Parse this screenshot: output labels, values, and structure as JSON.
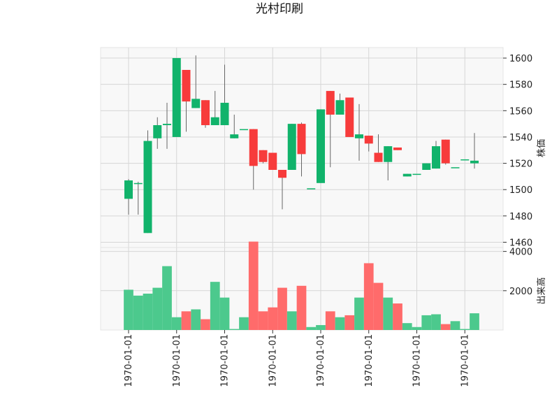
{
  "chart_data": {
    "type": "candlestick",
    "title": "光村印刷",
    "price_panel": {
      "ylabel": "株価",
      "ylim": [
        1456,
        1608
      ],
      "yticks": [
        1460,
        1480,
        1500,
        1520,
        1540,
        1560,
        1580,
        1600
      ]
    },
    "volume_panel": {
      "ylabel": "出来高",
      "ylim": [
        0,
        4200
      ],
      "yticks": [
        2000,
        4000
      ]
    },
    "x_tick_label": "1970-01-01",
    "x_tick_indices": [
      0,
      5,
      10,
      15,
      20,
      25,
      30,
      35
    ],
    "colors": {
      "up": "#11b36b",
      "down": "#f73b3b",
      "up_volume": "#4cc98d",
      "down_volume": "#ff6b6b",
      "wick": "#666666"
    },
    "candles": [
      {
        "open": 1493,
        "high": 1508,
        "low": 1481,
        "close": 1507,
        "volume": 2050
      },
      {
        "open": 1505,
        "high": 1506,
        "low": 1481,
        "close": 1505,
        "volume": 1750
      },
      {
        "open": 1467,
        "high": 1545,
        "low": 1467,
        "close": 1537,
        "volume": 1850
      },
      {
        "open": 1539,
        "high": 1555,
        "low": 1531,
        "close": 1549,
        "volume": 2150
      },
      {
        "open": 1549,
        "high": 1566,
        "low": 1531,
        "close": 1550,
        "volume": 3250
      },
      {
        "open": 1540,
        "high": 1600,
        "low": 1540,
        "close": 1600,
        "volume": 650
      },
      {
        "open": 1591,
        "high": 1591,
        "low": 1544,
        "close": 1567,
        "volume": 950
      },
      {
        "open": 1562,
        "high": 1602,
        "low": 1562,
        "close": 1569,
        "volume": 1050
      },
      {
        "open": 1568,
        "high": 1568,
        "low": 1547,
        "close": 1549,
        "volume": 550
      },
      {
        "open": 1549,
        "high": 1575,
        "low": 1549,
        "close": 1555,
        "volume": 2450
      },
      {
        "open": 1549,
        "high": 1595,
        "low": 1549,
        "close": 1566,
        "volume": 1650
      },
      {
        "open": 1539,
        "high": 1557,
        "low": 1539,
        "close": 1542,
        "volume": 50
      },
      {
        "open": 1546,
        "high": 1546,
        "low": 1546,
        "close": 1546,
        "volume": 650
      },
      {
        "open": 1546,
        "high": 1546,
        "low": 1500,
        "close": 1518,
        "volume": 4500
      },
      {
        "open": 1530,
        "high": 1530,
        "low": 1520,
        "close": 1521,
        "volume": 950
      },
      {
        "open": 1528,
        "high": 1528,
        "low": 1515,
        "close": 1515,
        "volume": 1150
      },
      {
        "open": 1515,
        "high": 1515,
        "low": 1485,
        "close": 1509,
        "volume": 2150
      },
      {
        "open": 1515,
        "high": 1550,
        "low": 1515,
        "close": 1550,
        "volume": 950
      },
      {
        "open": 1550,
        "high": 1551,
        "low": 1510,
        "close": 1527,
        "volume": 2250
      },
      {
        "open": 1501,
        "high": 1501,
        "low": 1501,
        "close": 1501,
        "volume": 150
      },
      {
        "open": 1505,
        "high": 1561,
        "low": 1505,
        "close": 1561,
        "volume": 250
      },
      {
        "open": 1575,
        "high": 1575,
        "low": 1517,
        "close": 1557,
        "volume": 950
      },
      {
        "open": 1557,
        "high": 1573,
        "low": 1557,
        "close": 1568,
        "volume": 650
      },
      {
        "open": 1570,
        "high": 1570,
        "low": 1540,
        "close": 1540,
        "volume": 750
      },
      {
        "open": 1539,
        "high": 1565,
        "low": 1522,
        "close": 1542,
        "volume": 1650
      },
      {
        "open": 1541,
        "high": 1541,
        "low": 1529,
        "close": 1535,
        "volume": 3400
      },
      {
        "open": 1528,
        "high": 1542,
        "low": 1521,
        "close": 1521,
        "volume": 2400
      },
      {
        "open": 1521,
        "high": 1533,
        "low": 1507,
        "close": 1533,
        "volume": 1650
      },
      {
        "open": 1532,
        "high": 1532,
        "low": 1530,
        "close": 1530,
        "volume": 1350
      },
      {
        "open": 1510,
        "high": 1512,
        "low": 1510,
        "close": 1512,
        "volume": 350
      },
      {
        "open": 1512,
        "high": 1512,
        "low": 1512,
        "close": 1512,
        "volume": 150
      },
      {
        "open": 1515,
        "high": 1520,
        "low": 1515,
        "close": 1520,
        "volume": 750
      },
      {
        "open": 1516,
        "high": 1537,
        "low": 1516,
        "close": 1533,
        "volume": 800
      },
      {
        "open": 1538,
        "high": 1538,
        "low": 1519,
        "close": 1520,
        "volume": 300
      },
      {
        "open": 1517,
        "high": 1517,
        "low": 1517,
        "close": 1517,
        "volume": 450
      },
      {
        "open": 1523,
        "high": 1523,
        "low": 1523,
        "close": 1523,
        "volume": 50
      },
      {
        "open": 1520,
        "high": 1543,
        "low": 1516,
        "close": 1522,
        "volume": 850
      }
    ]
  }
}
